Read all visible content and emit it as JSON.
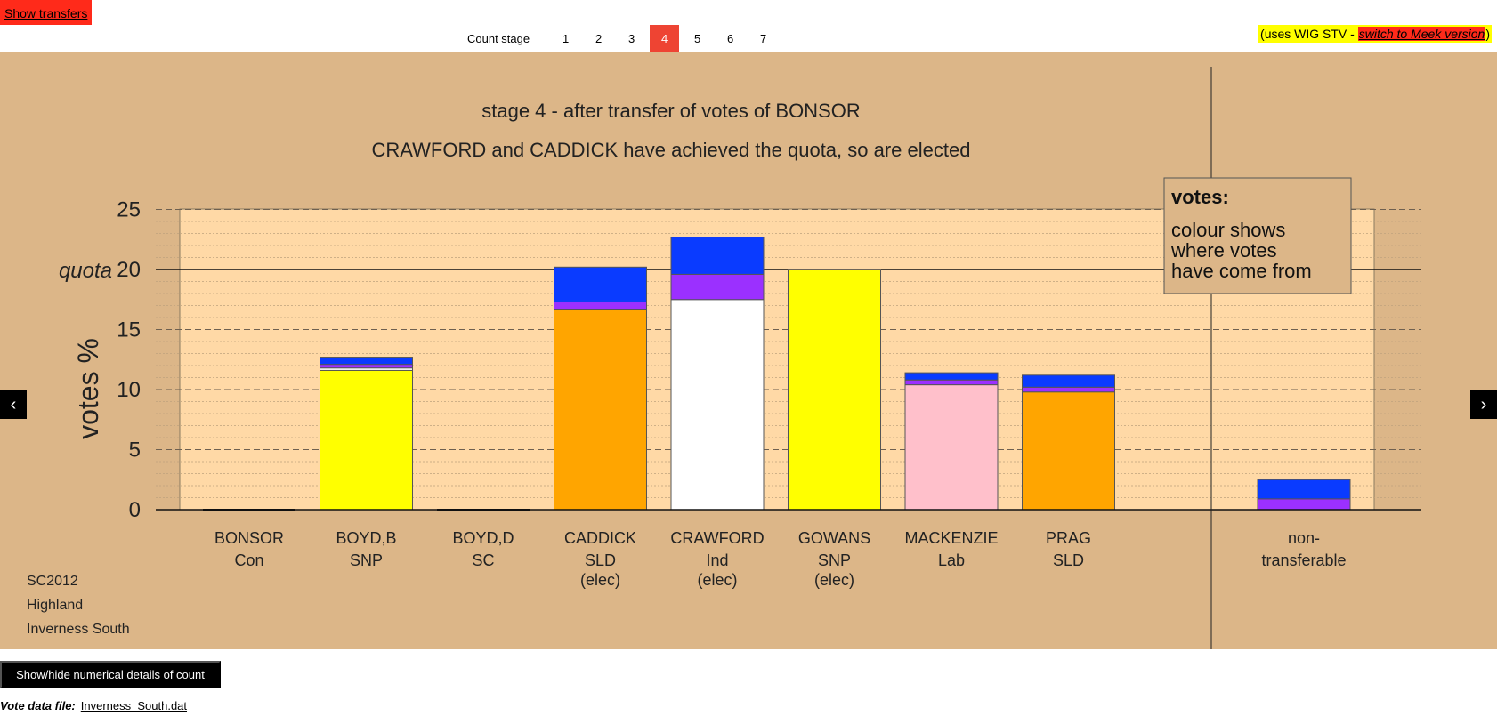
{
  "header": {
    "show_transfers_label": "Show transfers",
    "count_stage_label": "Count stage",
    "stages": [
      "1",
      "2",
      "3",
      "4",
      "5",
      "6",
      "7"
    ],
    "active_stage": "4",
    "wig_note_prefix": "(uses WIG STV - ",
    "wig_note_link": "switch to Meek version",
    "wig_note_suffix": ")"
  },
  "nav": {
    "prev": "‹",
    "next": "›"
  },
  "footer": {
    "numeric_details_label": "Show/hide numerical details of count",
    "vote_file_label": "Vote data file:",
    "vote_file_name": "Inverness_South.dat"
  },
  "colors": {
    "panel_bg": "#dcb688",
    "plot_bg": "#ffd9a6",
    "blue": "#0a3bff",
    "purple": "#9b30ff",
    "yellow": "#ffff00",
    "orange": "#ffa500",
    "white": "#ffffff",
    "pink": "#ffc0cb"
  },
  "chart_data": {
    "type": "bar",
    "title": "stage 4 - after transfer of votes of BONSOR",
    "subtitle": "CRAWFORD and CADDICK have achieved the quota, so are elected",
    "ylabel": "votes %",
    "ylim": [
      0,
      25
    ],
    "yticks": [
      "0",
      "5",
      "10",
      "15",
      "20",
      "25"
    ],
    "quota": 20,
    "quota_label": "quota",
    "grid": true,
    "legend": {
      "title": "votes:",
      "lines": [
        "colour shows",
        "where votes",
        "have come from"
      ]
    },
    "candidates": [
      {
        "name": "BONSOR",
        "party": "Con",
        "status": "",
        "segments": []
      },
      {
        "name": "BOYD,B",
        "party": "SNP",
        "status": "",
        "segments": [
          {
            "color": "yellow",
            "value": 11.6
          },
          {
            "color": "white",
            "value": 0.2
          },
          {
            "color": "purple",
            "value": 0.3
          },
          {
            "color": "blue",
            "value": 0.6
          }
        ]
      },
      {
        "name": "BOYD,D",
        "party": "SC",
        "status": "",
        "segments": []
      },
      {
        "name": "CADDICK",
        "party": "SLD",
        "status": "(elec)",
        "segments": [
          {
            "color": "orange",
            "value": 16.7
          },
          {
            "color": "purple",
            "value": 0.6
          },
          {
            "color": "blue",
            "value": 2.9
          }
        ]
      },
      {
        "name": "CRAWFORD",
        "party": "Ind",
        "status": "(elec)",
        "segments": [
          {
            "color": "white",
            "value": 17.5
          },
          {
            "color": "purple",
            "value": 2.1
          },
          {
            "color": "blue",
            "value": 3.1
          }
        ]
      },
      {
        "name": "GOWANS",
        "party": "SNP",
        "status": "(elec)",
        "segments": [
          {
            "color": "yellow",
            "value": 20.0
          }
        ]
      },
      {
        "name": "MACKENZIE",
        "party": "Lab",
        "status": "",
        "segments": [
          {
            "color": "pink",
            "value": 10.4
          },
          {
            "color": "purple",
            "value": 0.4
          },
          {
            "color": "blue",
            "value": 0.6
          }
        ]
      },
      {
        "name": "PRAG",
        "party": "SLD",
        "status": "",
        "segments": [
          {
            "color": "orange",
            "value": 9.8
          },
          {
            "color": "purple",
            "value": 0.4
          },
          {
            "color": "blue",
            "value": 1.0
          }
        ]
      }
    ],
    "nontransferable": {
      "label_line1": "non-",
      "label_line2": "transferable",
      "segments": [
        {
          "color": "purple",
          "value": 0.9
        },
        {
          "color": "blue",
          "value": 1.6
        }
      ]
    },
    "election_info": [
      "SC2012",
      "Highland",
      "Inverness South"
    ]
  }
}
